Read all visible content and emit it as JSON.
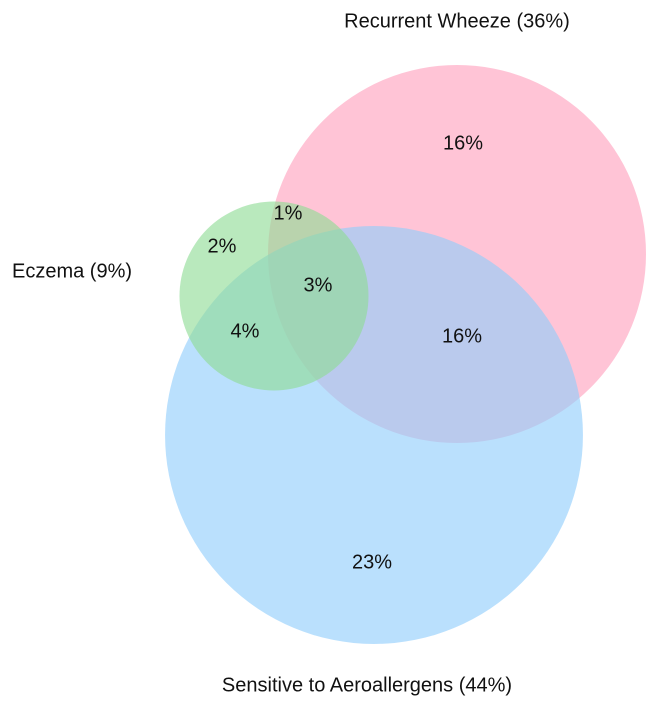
{
  "chart_data": {
    "type": "venn",
    "sets": [
      {
        "label": "Recurrent Wheeze (36%)",
        "value": 36,
        "color": "#ff9fbd"
      },
      {
        "label": "Sensitive to Aeroallergens (44%)",
        "value": 44,
        "color": "#8fcdfb"
      },
      {
        "label": "Eczema (9%)",
        "value": 9,
        "color": "#8edc94"
      }
    ],
    "values": [
      16,
      1,
      2,
      3,
      4,
      16,
      23
    ],
    "value_labels": [
      "16%",
      "1%",
      "2%",
      "3%",
      "4%",
      "16%",
      "23%"
    ]
  }
}
